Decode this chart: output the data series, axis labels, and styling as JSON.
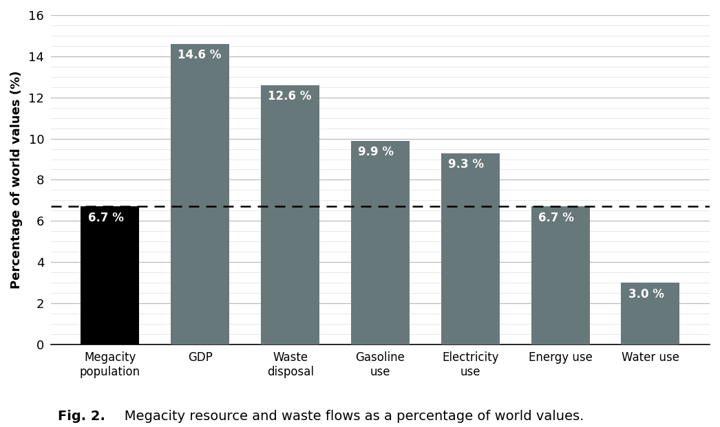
{
  "categories": [
    "Megacity\npopulation",
    "GDP",
    "Waste\ndisposal",
    "Gasoline\nuse",
    "Electricity\nuse",
    "Energy use",
    "Water use"
  ],
  "values": [
    6.7,
    14.6,
    12.6,
    9.9,
    9.3,
    6.7,
    3.0
  ],
  "labels": [
    "6.7 %",
    "14.6 %",
    "12.6 %",
    "9.9 %",
    "9.3 %",
    "6.7 %",
    "3.0 %"
  ],
  "bar_colors": [
    "#000000",
    "#66787a",
    "#66787a",
    "#66787a",
    "#66787a",
    "#66787a",
    "#66787a"
  ],
  "dashed_line_y": 6.7,
  "ylabel": "Percentage of world values (%)",
  "ylim": [
    0,
    16
  ],
  "yticks": [
    0,
    2,
    4,
    6,
    8,
    10,
    12,
    14,
    16
  ],
  "caption_bold": "Fig. 2.",
  "caption_normal": "   Megacity resource and waste flows as a percentage of world values.",
  "label_fontsize": 12,
  "tick_fontsize": 13,
  "ylabel_fontsize": 13,
  "bar_label_fontsize": 12,
  "caption_fontsize": 14,
  "background_color": "#ffffff",
  "major_grid_color": "#bbbbbb",
  "minor_grid_color": "#dddddd",
  "bar_width": 0.65
}
